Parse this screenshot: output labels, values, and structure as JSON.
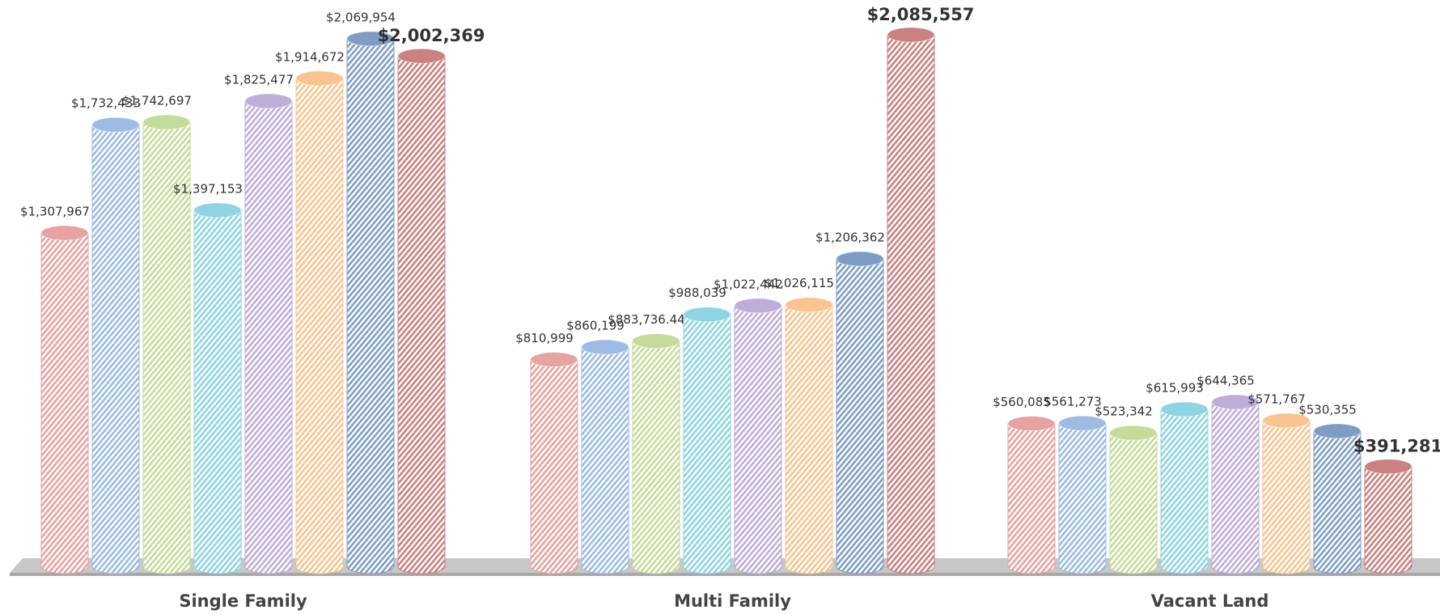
{
  "chart_data": {
    "type": "bar",
    "categories": [
      "Single Family",
      "Multi Family",
      "Vacant Land"
    ],
    "series": [
      {
        "color": "#e6a3a1",
        "values": [
          1307967,
          810999,
          560085
        ],
        "value_labels": [
          "$1,307,967",
          "$810,999",
          "$560,085"
        ]
      },
      {
        "color": "#9dbbe3",
        "values": [
          1732433,
          860199,
          561273
        ],
        "value_labels": [
          "$1,732,433",
          "$860,199",
          "$561,273"
        ]
      },
      {
        "color": "#c4dc9a",
        "values": [
          1742697,
          883736.44,
          523342
        ],
        "value_labels": [
          "$1,742,697",
          "$883,736.44",
          "$523,342"
        ]
      },
      {
        "color": "#8fd4e2",
        "values": [
          1397153,
          988039,
          615993
        ],
        "value_labels": [
          "$1,397,153",
          "$988,039",
          "$615,993"
        ]
      },
      {
        "color": "#bfadd9",
        "values": [
          1825477,
          1022442,
          644365
        ],
        "value_labels": [
          "$1,825,477",
          "$1,022,442",
          "$644,365"
        ]
      },
      {
        "color": "#f8c48f",
        "values": [
          1914672,
          1026115,
          571767
        ],
        "value_labels": [
          "$1,914,672",
          "$1,026,115",
          "$571,767"
        ]
      },
      {
        "color": "#7f9dc4",
        "values": [
          2069954,
          1206362,
          530355
        ],
        "value_labels": [
          "$2,069,954",
          "$1,206,362",
          "$530,355"
        ]
      },
      {
        "color": "#c98181",
        "values": [
          2002369,
          2085557,
          391281
        ],
        "value_labels": [
          "$2,002,369",
          "$2,085,557",
          "$391,281"
        ]
      }
    ]
  }
}
